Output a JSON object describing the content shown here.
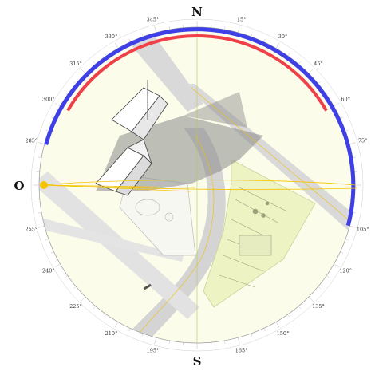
{
  "cardinals": {
    "north": "N",
    "south": "S",
    "west": "O"
  },
  "degree_labels": [
    "15°",
    "30°",
    "45°",
    "60°",
    "75°",
    "105°",
    "120°",
    "135°",
    "150°",
    "165°",
    "195°",
    "210°",
    "225°",
    "240°",
    "255°",
    "285°",
    "300°",
    "315°",
    "330°",
    "345°"
  ],
  "colors": {
    "outer_arc": "#3f3fe8",
    "inner_arc": "#ef3f48",
    "sun_path": "#f5c400",
    "sun": "#f5c400",
    "ground": "#fbfce9",
    "road": "#d8d8d8",
    "park": "#eef4c7",
    "shadow": "#8a8a8a"
  },
  "sun_marker": {
    "azimuth_deg": 270
  },
  "arcs": {
    "outer": {
      "from_deg": 285,
      "to_deg": 105
    },
    "inner": {
      "from_deg": 300,
      "to_deg": 60
    }
  },
  "icons": {
    "sun": "sun-icon"
  }
}
